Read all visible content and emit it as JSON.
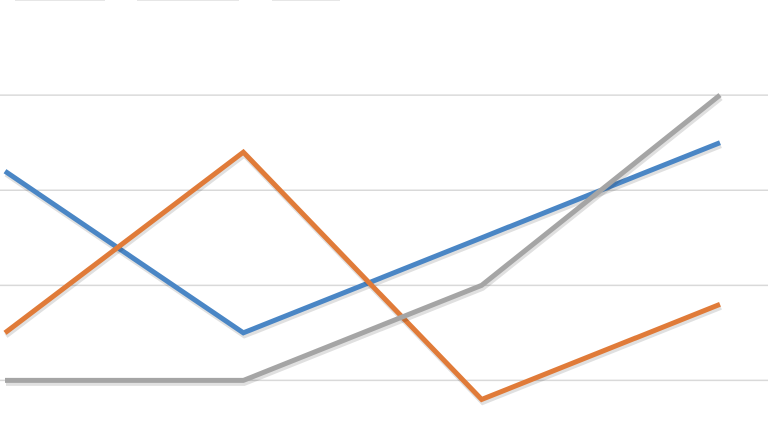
{
  "chart_data": {
    "type": "line",
    "title": "",
    "xlabel": "",
    "ylabel": "",
    "x": [
      1,
      2,
      3,
      4
    ],
    "ylim": [
      -0.7,
      4.0
    ],
    "yticks": [
      0,
      1,
      2,
      3
    ],
    "grid": true,
    "legend": "top",
    "series": [
      {
        "color": "#4a86c5",
        "values": [
          2.2,
          0.5,
          1.5,
          2.5
        ]
      },
      {
        "color": "#e07b39",
        "values": [
          0.5,
          2.4,
          -0.2,
          0.8
        ]
      },
      {
        "color": "#a5a5a5",
        "values": [
          0.0,
          0.0,
          1.0,
          3.0
        ]
      }
    ],
    "gridline_color": "#d9d9d9"
  }
}
